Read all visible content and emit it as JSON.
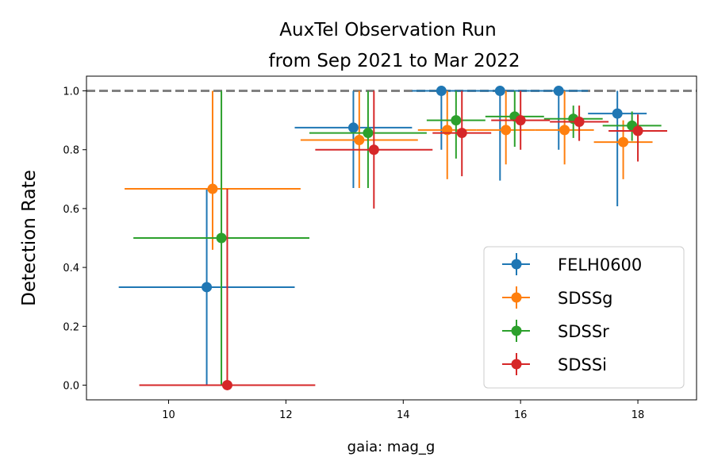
{
  "chart_data": {
    "type": "scatter",
    "title_line1": "AuxTel Observation Run",
    "title_line2": "from Sep 2021 to Mar 2022",
    "xlabel": "gaia: mag_g",
    "ylabel": "Detection Rate",
    "xlim": [
      8.6,
      19.0
    ],
    "ylim": [
      -0.05,
      1.05
    ],
    "xticks": [
      10,
      12,
      14,
      16,
      18
    ],
    "yticks": [
      0.0,
      0.2,
      0.4,
      0.6,
      0.8,
      1.0
    ],
    "xtick_labels": [
      "10",
      "12",
      "14",
      "16",
      "18"
    ],
    "ytick_labels": [
      "0.0",
      "0.2",
      "0.4",
      "0.6",
      "0.8",
      "1.0"
    ],
    "reference_line": {
      "y": 1.0,
      "style": "dashed",
      "color": "#808080"
    },
    "grid": false,
    "legend_position": "lower-right",
    "series": [
      {
        "name": "FELH0600",
        "color": "#1f77b4",
        "points": [
          {
            "x": 10.65,
            "y": 0.333,
            "xerr": 1.5,
            "yerr_low": 0.333,
            "yerr_high": 0.334
          },
          {
            "x": 13.15,
            "y": 0.875,
            "xerr": 1.0,
            "yerr_low": 0.205,
            "yerr_high": 0.125
          },
          {
            "x": 14.65,
            "y": 1.0,
            "xerr": 0.5,
            "yerr_low": 0.2,
            "yerr_high": 0.0
          },
          {
            "x": 15.65,
            "y": 1.0,
            "xerr": 0.5,
            "yerr_low": 0.305,
            "yerr_high": 0.0
          },
          {
            "x": 16.65,
            "y": 1.0,
            "xerr": 0.5,
            "yerr_low": 0.2,
            "yerr_high": 0.0
          },
          {
            "x": 17.65,
            "y": 0.923,
            "xerr": 0.5,
            "yerr_low": 0.315,
            "yerr_high": 0.077
          }
        ]
      },
      {
        "name": "SDSSg",
        "color": "#ff7f0e",
        "points": [
          {
            "x": 10.75,
            "y": 0.667,
            "xerr": 1.5,
            "yerr_low": 0.207,
            "yerr_high": 0.333
          },
          {
            "x": 13.25,
            "y": 0.833,
            "xerr": 1.0,
            "yerr_low": 0.163,
            "yerr_high": 0.167
          },
          {
            "x": 14.75,
            "y": 0.867,
            "xerr": 0.5,
            "yerr_low": 0.167,
            "yerr_high": 0.133
          },
          {
            "x": 15.75,
            "y": 0.867,
            "xerr": 0.5,
            "yerr_low": 0.117,
            "yerr_high": 0.133
          },
          {
            "x": 16.75,
            "y": 0.867,
            "xerr": 0.5,
            "yerr_low": 0.117,
            "yerr_high": 0.133
          },
          {
            "x": 17.75,
            "y": 0.826,
            "xerr": 0.5,
            "yerr_low": 0.126,
            "yerr_high": 0.074
          }
        ]
      },
      {
        "name": "SDSSr",
        "color": "#2ca02c",
        "points": [
          {
            "x": 10.9,
            "y": 0.5,
            "xerr": 1.5,
            "yerr_low": 0.5,
            "yerr_high": 0.5
          },
          {
            "x": 13.4,
            "y": 0.857,
            "xerr": 1.0,
            "yerr_low": 0.187,
            "yerr_high": 0.143
          },
          {
            "x": 14.9,
            "y": 0.9,
            "xerr": 0.5,
            "yerr_low": 0.13,
            "yerr_high": 0.1
          },
          {
            "x": 15.9,
            "y": 0.913,
            "xerr": 0.5,
            "yerr_low": 0.103,
            "yerr_high": 0.087
          },
          {
            "x": 16.9,
            "y": 0.905,
            "xerr": 0.5,
            "yerr_low": 0.065,
            "yerr_high": 0.045
          },
          {
            "x": 17.9,
            "y": 0.882,
            "xerr": 0.5,
            "yerr_low": 0.052,
            "yerr_high": 0.048
          }
        ]
      },
      {
        "name": "SDSSi",
        "color": "#d62728",
        "points": [
          {
            "x": 11.0,
            "y": 0.0,
            "xerr": 1.5,
            "yerr_low": 0.0,
            "yerr_high": 0.667
          },
          {
            "x": 13.5,
            "y": 0.8,
            "xerr": 1.0,
            "yerr_low": 0.2,
            "yerr_high": 0.2
          },
          {
            "x": 15.0,
            "y": 0.857,
            "xerr": 0.5,
            "yerr_low": 0.147,
            "yerr_high": 0.143
          },
          {
            "x": 16.0,
            "y": 0.9,
            "xerr": 0.5,
            "yerr_low": 0.1,
            "yerr_high": 0.1
          },
          {
            "x": 17.0,
            "y": 0.895,
            "xerr": 0.5,
            "yerr_low": 0.065,
            "yerr_high": 0.055
          },
          {
            "x": 18.0,
            "y": 0.864,
            "xerr": 0.5,
            "yerr_low": 0.104,
            "yerr_high": 0.056
          }
        ]
      }
    ]
  }
}
